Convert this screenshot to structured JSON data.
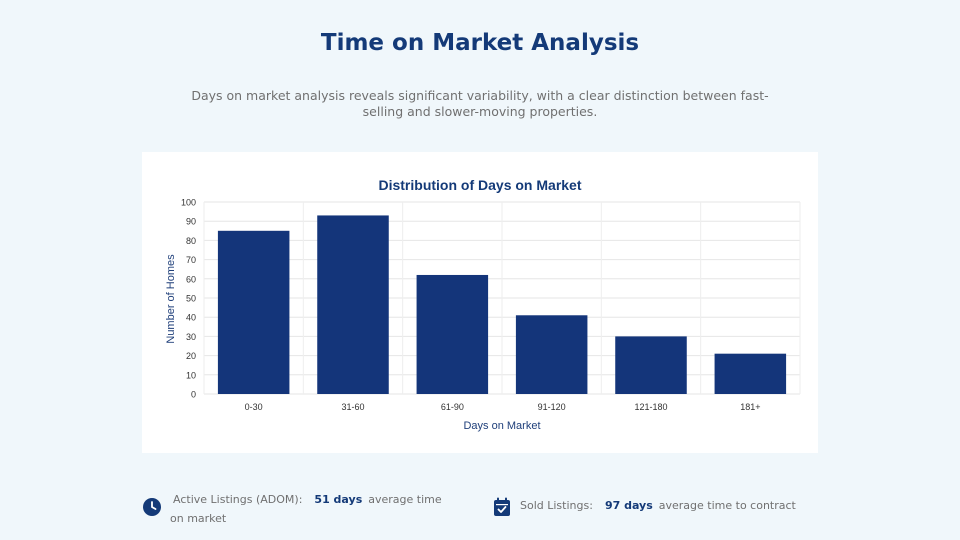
{
  "page": {
    "title": "Time on Market Analysis",
    "subtitle": "Days on market analysis reveals significant variability, with a clear distinction between fast-selling and slower-moving properties."
  },
  "colors": {
    "accent": "#143a78",
    "bar": "#14357a",
    "background": "#f0f7fb"
  },
  "chart_data": {
    "type": "bar",
    "title": "Distribution of Days on Market",
    "xlabel": "Days on Market",
    "ylabel": "Number of Homes",
    "categories": [
      "0-30",
      "31-60",
      "61-90",
      "91-120",
      "121-180",
      "181+"
    ],
    "values": [
      85,
      93,
      62,
      41,
      30,
      21
    ],
    "ylim": [
      0,
      100
    ],
    "yticks": [
      0,
      10,
      20,
      30,
      40,
      50,
      60,
      70,
      80,
      90,
      100
    ],
    "grid": true
  },
  "stats": {
    "active": {
      "icon": "clock-icon",
      "label": "Active Listings (ADOM):",
      "value": "51 days",
      "suffix": "average time on market"
    },
    "sold": {
      "icon": "calendar-check-icon",
      "label": "Sold Listings:",
      "value": "97 days",
      "suffix": "average time to contract"
    }
  }
}
